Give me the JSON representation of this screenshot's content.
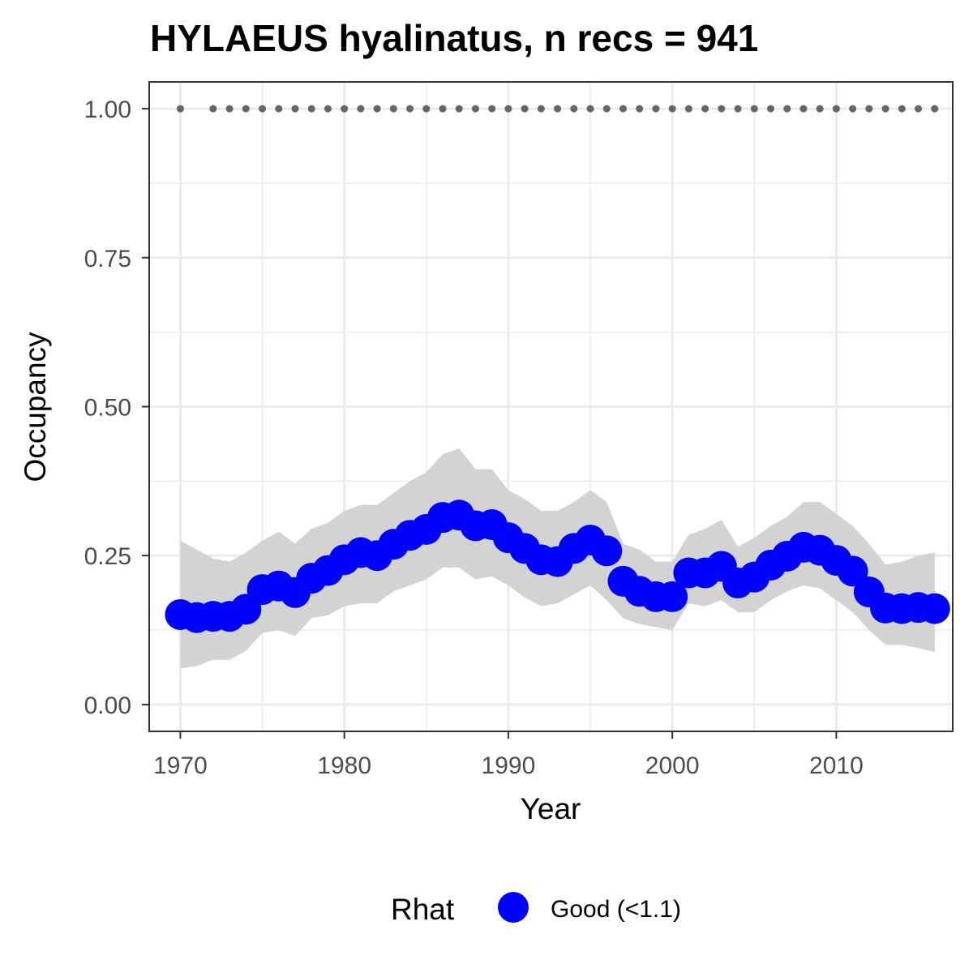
{
  "chart_data": {
    "type": "line",
    "title": "HYLAEUS hyalinatus, n recs = 941",
    "xlabel": "Year",
    "ylabel": "Occupancy",
    "xlim": [
      1968.1,
      2017.1
    ],
    "ylim": [
      -0.045,
      1.045
    ],
    "x_ticks": [
      1970,
      1980,
      1990,
      2000,
      2010
    ],
    "y_ticks": [
      0,
      0.25,
      0.5,
      0.75,
      1
    ],
    "x_tick_labels": [
      "1970",
      "1980",
      "1990",
      "2000",
      "2010"
    ],
    "y_tick_labels": [
      "0.00",
      "0.25",
      "0.50",
      "0.75",
      "1.00"
    ],
    "grid": true,
    "legend": {
      "title": "Rhat",
      "position": "bottom",
      "entries": [
        "Good (<1.1)"
      ]
    },
    "colors": {
      "points": "#0000ff",
      "ribbon": "#d3d3d3",
      "record_dots": "#666666",
      "grid": "#ebebeb",
      "panel_border": "#333333"
    },
    "x": [
      1970,
      1971,
      1972,
      1973,
      1974,
      1975,
      1976,
      1977,
      1978,
      1979,
      1980,
      1981,
      1982,
      1983,
      1984,
      1985,
      1986,
      1987,
      1988,
      1989,
      1990,
      1991,
      1992,
      1993,
      1994,
      1995,
      1996,
      1997,
      1998,
      1999,
      2000,
      2001,
      2002,
      2003,
      2004,
      2005,
      2006,
      2007,
      2008,
      2009,
      2010,
      2011,
      2012,
      2013,
      2014,
      2015,
      2016
    ],
    "series": [
      {
        "name": "Good (<1.1)",
        "values": [
          0.151,
          0.146,
          0.148,
          0.148,
          0.16,
          0.193,
          0.199,
          0.188,
          0.212,
          0.225,
          0.243,
          0.255,
          0.25,
          0.269,
          0.284,
          0.294,
          0.314,
          0.318,
          0.3,
          0.302,
          0.28,
          0.262,
          0.243,
          0.24,
          0.262,
          0.276,
          0.258,
          0.207,
          0.19,
          0.181,
          0.181,
          0.221,
          0.221,
          0.232,
          0.204,
          0.214,
          0.234,
          0.249,
          0.264,
          0.259,
          0.242,
          0.224,
          0.189,
          0.162,
          0.161,
          0.163,
          0.161
        ],
        "lower": [
          0.06,
          0.065,
          0.075,
          0.075,
          0.09,
          0.12,
          0.125,
          0.115,
          0.145,
          0.15,
          0.165,
          0.17,
          0.17,
          0.19,
          0.2,
          0.21,
          0.23,
          0.23,
          0.21,
          0.215,
          0.2,
          0.18,
          0.165,
          0.17,
          0.185,
          0.2,
          0.175,
          0.145,
          0.135,
          0.13,
          0.125,
          0.17,
          0.165,
          0.175,
          0.155,
          0.155,
          0.175,
          0.19,
          0.2,
          0.195,
          0.175,
          0.155,
          0.125,
          0.1,
          0.1,
          0.095,
          0.088
        ],
        "upper": [
          0.275,
          0.26,
          0.245,
          0.24,
          0.255,
          0.275,
          0.29,
          0.27,
          0.295,
          0.305,
          0.325,
          0.335,
          0.335,
          0.355,
          0.375,
          0.39,
          0.42,
          0.43,
          0.395,
          0.395,
          0.36,
          0.345,
          0.325,
          0.325,
          0.34,
          0.36,
          0.34,
          0.27,
          0.26,
          0.24,
          0.24,
          0.285,
          0.295,
          0.31,
          0.265,
          0.28,
          0.3,
          0.315,
          0.34,
          0.34,
          0.32,
          0.3,
          0.27,
          0.235,
          0.24,
          0.25,
          0.255
        ]
      }
    ],
    "record_years": [
      1970,
      1972,
      1973,
      1974,
      1975,
      1976,
      1977,
      1978,
      1979,
      1980,
      1981,
      1982,
      1983,
      1984,
      1985,
      1986,
      1987,
      1988,
      1989,
      1990,
      1991,
      1992,
      1993,
      1994,
      1995,
      1996,
      1997,
      1998,
      1999,
      2000,
      2001,
      2002,
      2003,
      2004,
      2005,
      2006,
      2007,
      2008,
      2009,
      2010,
      2011,
      2012,
      2013,
      2014,
      2015,
      2016
    ],
    "record_value": 1.0
  }
}
